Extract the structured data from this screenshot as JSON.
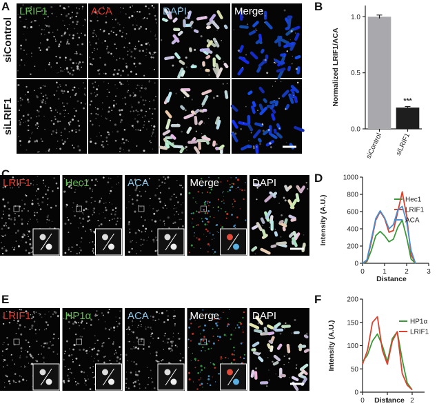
{
  "panel_letters": [
    "A",
    "B",
    "C",
    "D",
    "E",
    "F"
  ],
  "panel_a": {
    "columns": [
      "LRIF1",
      "ACA",
      "DAPI",
      "Merge"
    ],
    "rows": [
      "siControl",
      "siLRIF1"
    ]
  },
  "panel_c": {
    "columns": [
      "LRIF1",
      "Hec1",
      "ACA",
      "Merge",
      "DAPI"
    ]
  },
  "panel_e": {
    "columns": [
      "LRIF1",
      "HP1α",
      "ACA",
      "Merge",
      "DAPI"
    ]
  },
  "chart_data": [
    {
      "type": "bar",
      "ylabel": "Normalized LRIF1/ACA",
      "categories": [
        "siControl",
        "siLRIF1"
      ],
      "values": [
        1.0,
        0.19
      ],
      "errors": [
        0.015,
        0.01
      ],
      "colors": [
        "#a9a9ad",
        "#1e1e1e"
      ],
      "annotation": "***",
      "ylim": [
        0,
        1.1
      ],
      "yticks": [
        {
          "value": 0,
          "label": "0.0"
        },
        {
          "value": 0.5,
          "label": "0.5"
        },
        {
          "value": 1,
          "label": "1.0"
        }
      ]
    },
    {
      "type": "line",
      "xlabel": "Distance",
      "ylabel": "Intensity (A.U.)",
      "x": [
        0,
        0.2,
        0.4,
        0.6,
        0.8,
        1.0,
        1.2,
        1.4,
        1.6,
        1.8,
        2.0,
        2.2,
        2.4
      ],
      "series": [
        {
          "name": "Hec1",
          "color": "#3a9a3a",
          "values": [
            0,
            20,
            150,
            320,
            370,
            320,
            250,
            280,
            420,
            500,
            300,
            50,
            0
          ]
        },
        {
          "name": "LRIF1",
          "color": "#d9432f",
          "values": [
            0,
            30,
            250,
            500,
            600,
            520,
            360,
            380,
            600,
            830,
            550,
            100,
            0
          ]
        },
        {
          "name": "ACA",
          "color": "#4a90d0",
          "values": [
            0,
            40,
            280,
            520,
            610,
            530,
            400,
            450,
            620,
            660,
            480,
            150,
            0
          ]
        }
      ],
      "xlim": [
        0,
        3
      ],
      "xticks": [
        0,
        1,
        2,
        3
      ],
      "ylim": [
        0,
        1000
      ],
      "yticks": [
        0,
        200,
        400,
        600,
        800,
        1000
      ],
      "legend": "upper right"
    },
    {
      "type": "line",
      "xlabel": "Distance",
      "ylabel": "Intensity (A.U.)",
      "x": [
        0,
        0.2,
        0.4,
        0.6,
        0.8,
        1.0,
        1.2,
        1.4,
        1.6,
        1.8,
        2.0
      ],
      "series": [
        {
          "name": "HP1α",
          "color": "#3a9a3a",
          "values": [
            65,
            80,
            110,
            125,
            100,
            65,
            115,
            130,
            70,
            20,
            5
          ]
        },
        {
          "name": "LRIF1",
          "color": "#d9432f",
          "values": [
            60,
            90,
            150,
            162,
            90,
            60,
            110,
            130,
            40,
            15,
            5
          ]
        }
      ],
      "xlim": [
        0,
        2.5
      ],
      "xticks": [
        0,
        1,
        2
      ],
      "ylim": [
        0,
        200
      ],
      "yticks": [
        0,
        50,
        100,
        150,
        200
      ],
      "legend": "upper right"
    }
  ]
}
